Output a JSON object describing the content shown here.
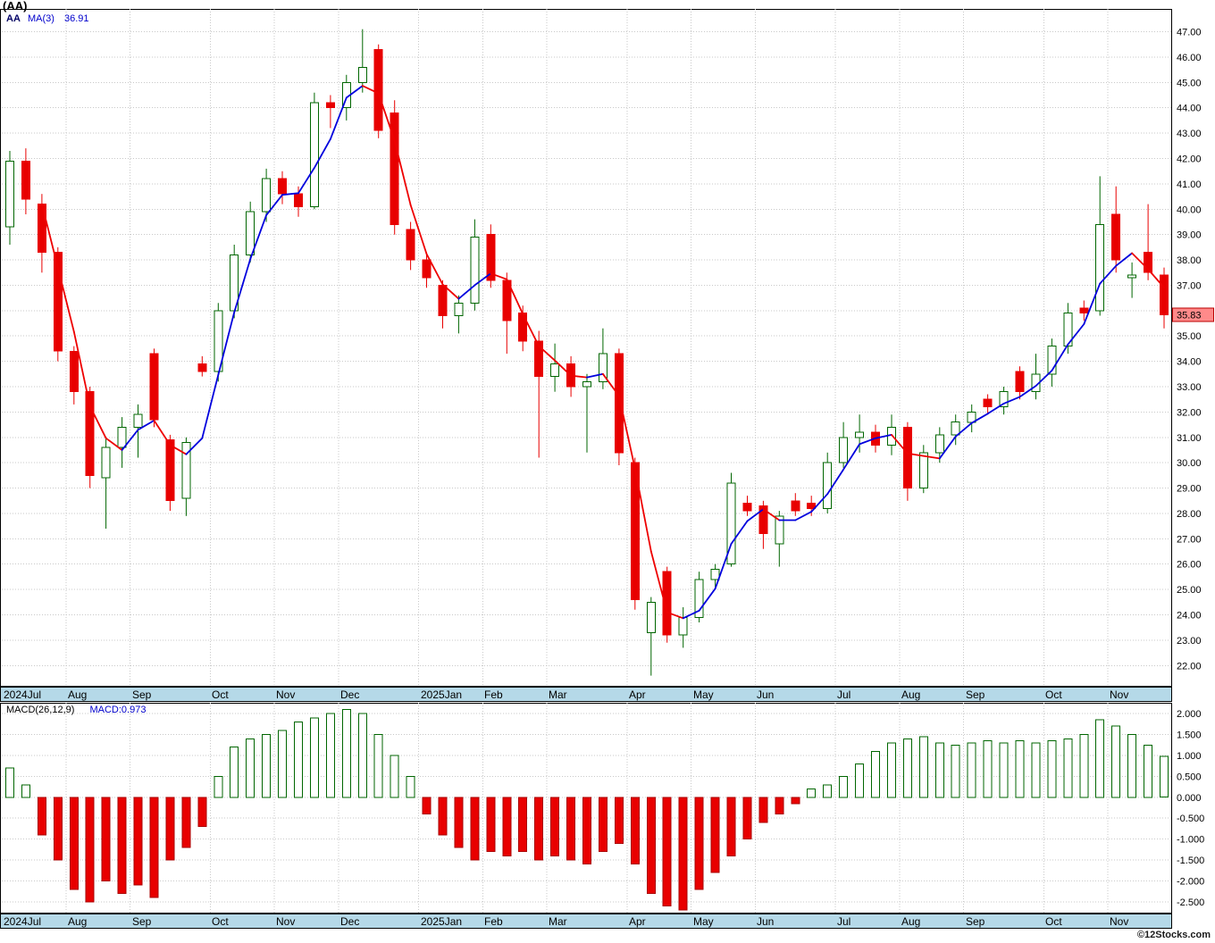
{
  "header": {
    "title": "(AA)"
  },
  "price_chart": {
    "legend": {
      "symbol": "AA",
      "ma_label": "MA(3)",
      "ma_value": "36.91"
    },
    "last_price_badge": "35.83"
  },
  "macd_chart": {
    "legend_params": "MACD(26,12,9)",
    "legend_value": "MACD:0.973"
  },
  "watermark": "©12Stocks.com",
  "colors": {
    "grid": "#c9c9c9",
    "band": "#b5d9e8",
    "up": "#006600",
    "down": "#e80000",
    "down_dark": "#aa0000",
    "ma_up": "#0000dd",
    "ma_down": "#ee0000",
    "badge_bg": "#ff8a8a",
    "badge_border": "#bb0000",
    "legend_blue": "#0000cc",
    "axis_text": "#000000"
  },
  "chart_data": [
    {
      "type": "candlestick",
      "symbol": "AA",
      "overlay": {
        "name": "MA(3)",
        "last_value": 36.91,
        "color_rising": "#0000dd",
        "color_falling": "#ee0000"
      },
      "last_close": 35.83,
      "ylim": [
        21.2,
        47.9
      ],
      "yticks": [
        22,
        23,
        24,
        25,
        26,
        27,
        28,
        29,
        30,
        31,
        32,
        33,
        34,
        35,
        36,
        37,
        38,
        39,
        40,
        41,
        42,
        43,
        44,
        45,
        46,
        47
      ],
      "x_axis": {
        "tick_indices": [
          0,
          4,
          8,
          13,
          17,
          21,
          26,
          30,
          34,
          39,
          43,
          47,
          52,
          56,
          60,
          65,
          69
        ],
        "tick_labels": [
          "2024Jul",
          "Aug",
          "Sep",
          "Oct",
          "Nov",
          "Dec",
          "2025Jan",
          "Feb",
          "Mar",
          "Apr",
          "May",
          "Jun",
          "Jul",
          "Aug",
          "Sep",
          "Oct",
          "Nov"
        ]
      },
      "ohlc": [
        [
          39.3,
          42.3,
          38.6,
          41.9
        ],
        [
          41.9,
          42.4,
          39.8,
          40.4
        ],
        [
          40.2,
          40.6,
          37.5,
          38.3
        ],
        [
          38.3,
          38.5,
          34.0,
          34.4
        ],
        [
          34.4,
          34.6,
          32.3,
          32.8
        ],
        [
          32.8,
          33.0,
          29.0,
          29.5
        ],
        [
          29.4,
          31.0,
          27.4,
          30.6
        ],
        [
          30.6,
          31.8,
          29.8,
          31.4
        ],
        [
          31.4,
          32.3,
          30.2,
          31.9
        ],
        [
          34.3,
          34.5,
          31.4,
          31.7
        ],
        [
          30.9,
          31.1,
          28.1,
          28.5
        ],
        [
          28.6,
          31.0,
          27.9,
          30.8
        ],
        [
          33.9,
          34.2,
          33.4,
          33.6
        ],
        [
          33.6,
          36.3,
          33.2,
          36.0
        ],
        [
          36.0,
          38.6,
          35.7,
          38.2
        ],
        [
          38.2,
          40.3,
          37.9,
          39.9
        ],
        [
          39.9,
          41.6,
          39.5,
          41.2
        ],
        [
          41.2,
          41.5,
          40.2,
          40.6
        ],
        [
          40.6,
          40.9,
          39.7,
          40.1
        ],
        [
          40.1,
          44.6,
          40.0,
          44.2
        ],
        [
          44.2,
          44.5,
          43.2,
          44.0
        ],
        [
          44.0,
          45.3,
          43.5,
          45.0
        ],
        [
          45.0,
          47.1,
          44.6,
          45.6
        ],
        [
          46.3,
          46.5,
          42.8,
          43.1
        ],
        [
          43.8,
          44.3,
          39.0,
          39.4
        ],
        [
          39.2,
          39.5,
          37.6,
          38.0
        ],
        [
          38.0,
          38.3,
          36.9,
          37.3
        ],
        [
          37.0,
          37.2,
          35.3,
          35.8
        ],
        [
          35.8,
          36.6,
          35.1,
          36.3
        ],
        [
          36.3,
          39.6,
          36.0,
          38.9
        ],
        [
          39.0,
          39.4,
          36.9,
          37.2
        ],
        [
          37.2,
          37.5,
          34.3,
          35.6
        ],
        [
          35.9,
          36.2,
          34.4,
          34.8
        ],
        [
          34.8,
          35.2,
          30.2,
          33.4
        ],
        [
          33.4,
          34.7,
          32.8,
          33.9
        ],
        [
          33.9,
          34.2,
          32.6,
          33.0
        ],
        [
          33.0,
          33.5,
          30.4,
          33.2
        ],
        [
          33.2,
          35.3,
          32.9,
          34.3
        ],
        [
          34.3,
          34.5,
          29.9,
          30.4
        ],
        [
          30.0,
          30.2,
          24.2,
          24.6
        ],
        [
          23.3,
          24.7,
          21.6,
          24.5
        ],
        [
          25.7,
          25.9,
          22.9,
          23.2
        ],
        [
          23.2,
          24.3,
          22.7,
          23.9
        ],
        [
          23.9,
          25.7,
          23.7,
          25.4
        ],
        [
          25.4,
          26.0,
          25.0,
          25.8
        ],
        [
          26.0,
          29.6,
          25.9,
          29.2
        ],
        [
          28.4,
          28.7,
          27.9,
          28.1
        ],
        [
          28.3,
          28.5,
          26.6,
          27.2
        ],
        [
          26.8,
          28.1,
          25.9,
          27.9
        ],
        [
          28.5,
          28.8,
          27.9,
          28.1
        ],
        [
          28.4,
          28.7,
          27.9,
          28.2
        ],
        [
          28.2,
          30.4,
          28.0,
          30.0
        ],
        [
          30.0,
          31.6,
          29.8,
          31.0
        ],
        [
          31.0,
          31.9,
          30.4,
          31.2
        ],
        [
          31.2,
          31.5,
          30.4,
          30.7
        ],
        [
          30.7,
          31.9,
          30.3,
          31.4
        ],
        [
          31.4,
          31.6,
          28.5,
          29.0
        ],
        [
          29.0,
          30.7,
          28.8,
          30.4
        ],
        [
          30.4,
          31.4,
          30.0,
          31.1
        ],
        [
          31.1,
          31.9,
          30.7,
          31.6
        ],
        [
          31.6,
          32.3,
          31.2,
          32.0
        ],
        [
          32.5,
          32.7,
          31.9,
          32.2
        ],
        [
          32.2,
          33.0,
          31.9,
          32.8
        ],
        [
          33.6,
          33.8,
          32.5,
          32.8
        ],
        [
          32.8,
          34.3,
          32.5,
          33.5
        ],
        [
          33.5,
          34.9,
          33.0,
          34.6
        ],
        [
          34.6,
          36.3,
          34.3,
          35.9
        ],
        [
          36.1,
          36.4,
          35.6,
          35.9
        ],
        [
          36.0,
          41.3,
          35.8,
          39.4
        ],
        [
          39.8,
          40.9,
          37.5,
          38.0
        ],
        [
          37.3,
          37.9,
          36.5,
          37.4
        ],
        [
          38.3,
          40.2,
          37.2,
          37.5
        ],
        [
          37.4,
          37.7,
          35.3,
          35.83
        ]
      ]
    },
    {
      "type": "bar",
      "name": "MACD histogram",
      "params": [
        26,
        12,
        9
      ],
      "last_value": 0.973,
      "ylim": [
        -2.76,
        2.26
      ],
      "yticks": [
        2,
        1.5,
        1,
        0.5,
        0,
        -0.5,
        -1,
        -1.5,
        -2,
        -2.5
      ],
      "values": [
        0.7,
        0.3,
        -0.9,
        -1.5,
        -2.2,
        -2.5,
        -2.0,
        -2.3,
        -2.1,
        -2.4,
        -1.5,
        -1.2,
        -0.7,
        0.5,
        1.2,
        1.4,
        1.5,
        1.6,
        1.8,
        1.9,
        2.0,
        2.1,
        2.0,
        1.5,
        1.0,
        0.5,
        -0.4,
        -0.9,
        -1.2,
        -1.5,
        -1.3,
        -1.4,
        -1.3,
        -1.5,
        -1.4,
        -1.5,
        -1.6,
        -1.3,
        -1.1,
        -1.6,
        -2.3,
        -2.6,
        -2.7,
        -2.2,
        -1.8,
        -1.4,
        -1.0,
        -0.6,
        -0.4,
        -0.15,
        0.2,
        0.3,
        0.5,
        0.8,
        1.1,
        1.3,
        1.4,
        1.45,
        1.3,
        1.25,
        1.3,
        1.35,
        1.3,
        1.35,
        1.3,
        1.35,
        1.4,
        1.5,
        1.85,
        1.7,
        1.5,
        1.25,
        0.973
      ]
    }
  ]
}
